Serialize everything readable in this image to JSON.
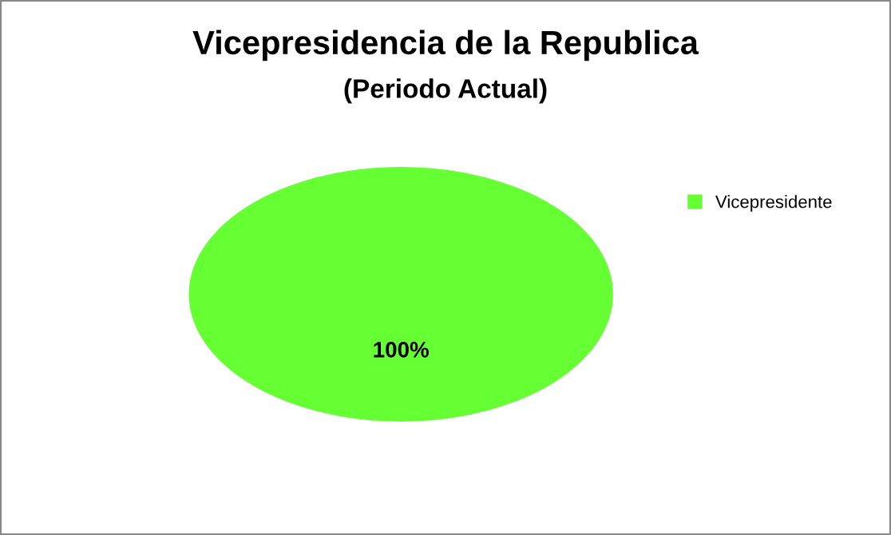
{
  "chart_data": {
    "type": "pie",
    "title": "Vicepresidencia de la Republica",
    "subtitle": "(Periodo Actual)",
    "categories": [
      "Vicepresidente"
    ],
    "values": [
      100
    ],
    "colors": [
      "#66ff33"
    ],
    "value_labels": [
      "100%"
    ],
    "legend": "right"
  }
}
